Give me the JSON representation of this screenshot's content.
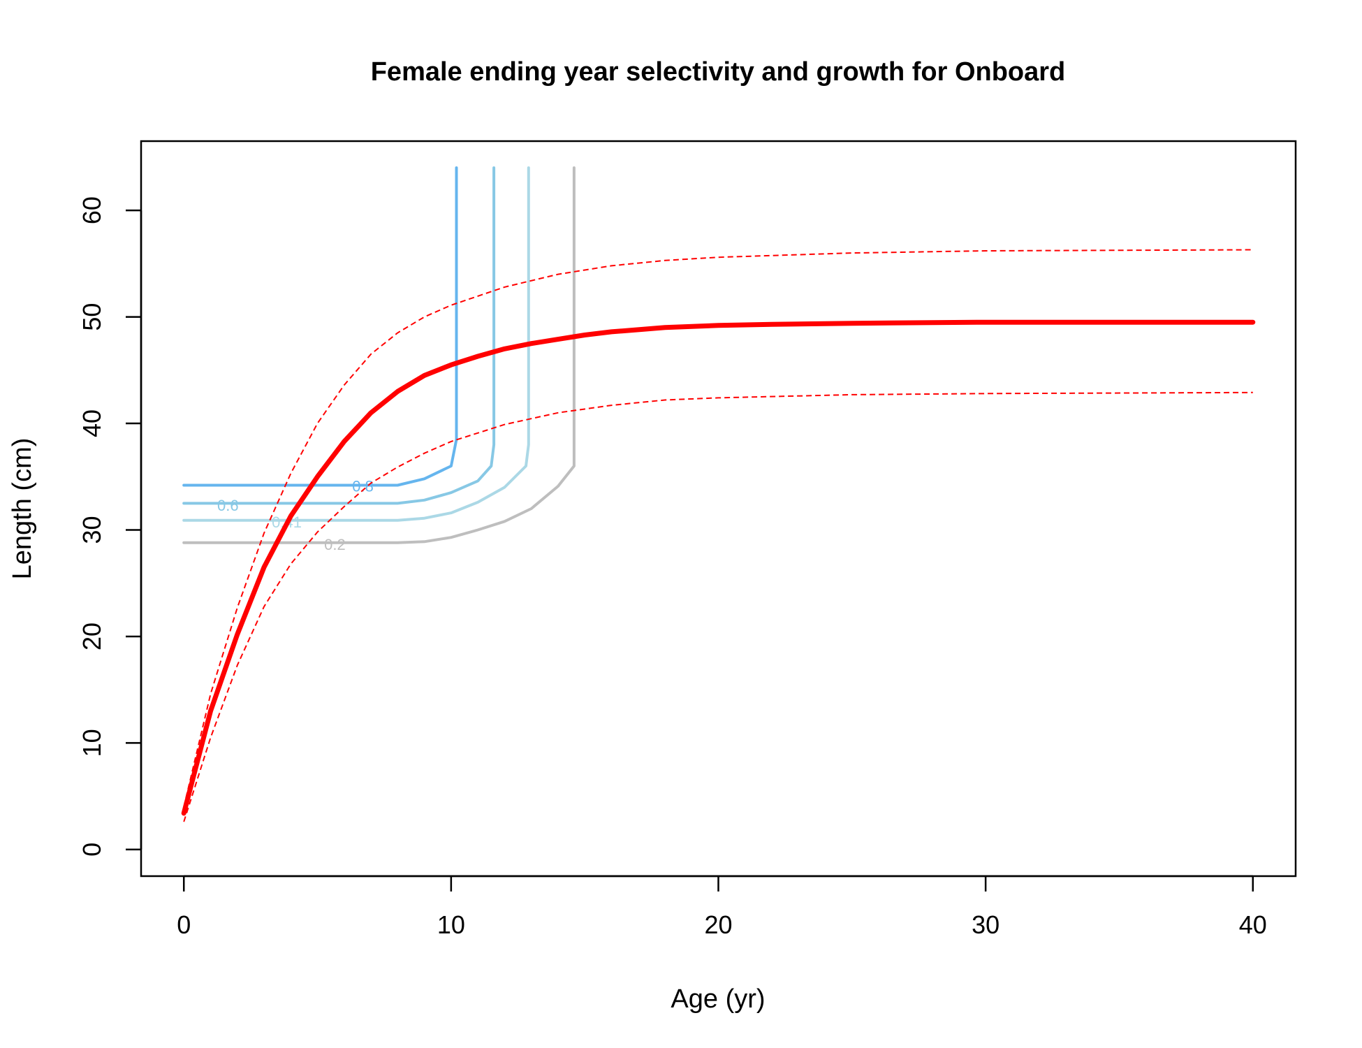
{
  "chart_data": {
    "type": "line",
    "title": "Female ending year selectivity and growth for Onboard",
    "xlabel": "Age (yr)",
    "ylabel": "Length (cm)",
    "xlim": [
      -1.6,
      41.6
    ],
    "ylim": [
      -2.5,
      66.5
    ],
    "x_ticks": [
      0,
      10,
      20,
      30,
      40
    ],
    "y_ticks": [
      0,
      10,
      20,
      30,
      40,
      50,
      60
    ],
    "grid": false,
    "legend": "none",
    "growth": {
      "color": "#ff0000",
      "mean": {
        "x": [
          0,
          1,
          2,
          3,
          4,
          5,
          6,
          7,
          8,
          9,
          10,
          11,
          12,
          13,
          14,
          15,
          16,
          17,
          18,
          20,
          22,
          25,
          30,
          35,
          40
        ],
        "y": [
          3.4,
          13.0,
          20.2,
          26.5,
          31.3,
          35.0,
          38.3,
          41.0,
          43.0,
          44.5,
          45.5,
          46.3,
          47.0,
          47.5,
          47.9,
          48.3,
          48.6,
          48.8,
          49.0,
          49.2,
          49.3,
          49.4,
          49.5,
          49.5,
          49.5
        ]
      },
      "upper": {
        "x": [
          0,
          1,
          2,
          3,
          4,
          5,
          6,
          7,
          8,
          9,
          10,
          12,
          14,
          16,
          18,
          20,
          25,
          30,
          40
        ],
        "y": [
          4.0,
          14.6,
          22.7,
          29.7,
          35.3,
          40.0,
          43.6,
          46.5,
          48.5,
          50.0,
          51.1,
          52.8,
          54.0,
          54.8,
          55.3,
          55.6,
          56.0,
          56.2,
          56.3
        ]
      },
      "lower": {
        "x": [
          0,
          1,
          2,
          3,
          4,
          5,
          6,
          7,
          8,
          9,
          10,
          12,
          14,
          16,
          18,
          20,
          25,
          30,
          40
        ],
        "y": [
          2.6,
          10.5,
          17.3,
          22.8,
          26.8,
          29.8,
          32.2,
          34.4,
          35.9,
          37.2,
          38.3,
          39.9,
          41.0,
          41.7,
          42.2,
          42.4,
          42.7,
          42.8,
          42.9
        ]
      }
    },
    "selectivity_contours": [
      {
        "level": "0.8",
        "color": "#65b5ee",
        "x": [
          0,
          5,
          8,
          9,
          10,
          10.2,
          10.2
        ],
        "y": [
          34.2,
          34.2,
          34.2,
          34.8,
          36.0,
          38.5,
          64
        ]
      },
      {
        "level": "0.6",
        "color": "#87c8e5",
        "x": [
          0,
          5,
          8,
          9,
          10,
          11,
          11.5,
          11.6,
          11.6
        ],
        "y": [
          32.5,
          32.5,
          32.5,
          32.8,
          33.5,
          34.6,
          36.0,
          38.0,
          64
        ]
      },
      {
        "level": "0.41",
        "color": "#abd8e6",
        "x": [
          0,
          5,
          8,
          9,
          10,
          11,
          12,
          12.8,
          12.9,
          12.9
        ],
        "y": [
          30.9,
          30.9,
          30.9,
          31.1,
          31.6,
          32.6,
          34.0,
          36.0,
          38.0,
          64
        ]
      },
      {
        "level": "0.2",
        "color": "#bebebe",
        "x": [
          0,
          5,
          8,
          9,
          10,
          11,
          12,
          13,
          14,
          14.6,
          14.6,
          14.6
        ],
        "y": [
          28.8,
          28.8,
          28.8,
          28.9,
          29.3,
          30.0,
          30.8,
          32.0,
          34.1,
          36.0,
          38.0,
          64
        ]
      }
    ],
    "contour_labels": [
      {
        "text": "0.8",
        "x": 6.7,
        "y": 34.0,
        "color": "#65b5ee"
      },
      {
        "text": "0.6",
        "x": 1.65,
        "y": 32.2,
        "color": "#87c8e5"
      },
      {
        "text": "0.41",
        "x": 3.85,
        "y": 30.6,
        "color": "#abd8e6"
      },
      {
        "text": "0.2",
        "x": 5.65,
        "y": 28.5,
        "color": "#bebebe"
      }
    ]
  }
}
